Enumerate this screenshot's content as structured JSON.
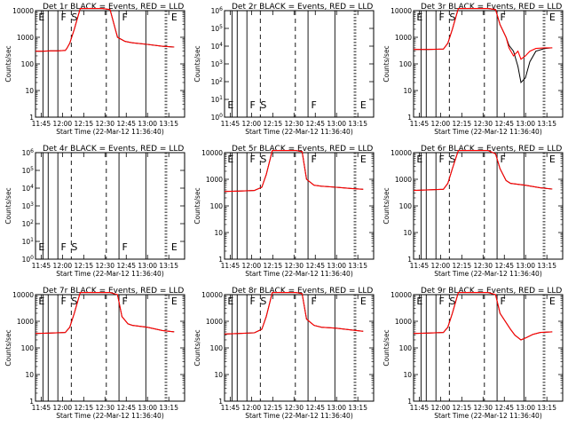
{
  "chart_data": [
    {
      "type": "line",
      "title": "Det 1r BLACK = Events, RED = LLD",
      "xlabel": "Start Time (22-Mar-12 11:36:40)",
      "ylabel": "Counts/sec",
      "yscale": "log",
      "ylim": [
        1,
        10000
      ],
      "xlim": [
        0,
        100
      ],
      "xticks": [
        "11:45",
        "12:00",
        "12:15",
        "12:30",
        "12:45",
        "13:00",
        "13:15"
      ],
      "ytick_labels": [
        "1",
        "10",
        "100",
        "1000",
        "10000"
      ],
      "markers": [
        "E",
        "F",
        "S",
        "F",
        "E"
      ],
      "series": [
        {
          "name": "Events",
          "color": "#000000",
          "x": [
            0,
            5,
            10,
            15,
            20,
            21,
            23,
            26,
            30,
            35,
            40,
            45,
            50,
            55,
            60,
            63,
            65,
            75,
            85,
            93
          ],
          "y": [
            300,
            300,
            310,
            310,
            320,
            380,
            600,
            2000,
            12000,
            12000,
            12000,
            12000,
            11000,
            1000,
            700,
            650,
            620,
            540,
            460,
            430
          ]
        },
        {
          "name": "LLD",
          "color": "#ff0000",
          "x": [
            0,
            5,
            10,
            15,
            20,
            21,
            23,
            26,
            30,
            35,
            40,
            45,
            50,
            55,
            60,
            63,
            65,
            75,
            85,
            93
          ],
          "y": [
            300,
            300,
            310,
            310,
            320,
            380,
            600,
            2000,
            12000,
            12000,
            12000,
            12000,
            11000,
            1000,
            700,
            650,
            620,
            540,
            460,
            430
          ]
        }
      ]
    },
    {
      "type": "line",
      "title": "Det 2r BLACK = Events, RED = LLD",
      "xlabel": "Start Time (22-Mar-12 11:36:40)",
      "ylabel": "Counts/sec",
      "yscale": "log",
      "ylim": [
        1,
        1000000
      ],
      "xlim": [
        0,
        100
      ],
      "xticks": [
        "11:45",
        "12:00",
        "12:15",
        "12:30",
        "12:45",
        "13:00",
        "13:15"
      ],
      "ytick_labels": [
        "10^0",
        "10^1",
        "10^2",
        "10^3",
        "10^4",
        "10^5",
        "10^6"
      ],
      "markers": [
        "E",
        "F",
        "S",
        "F",
        "E"
      ],
      "series": []
    },
    {
      "type": "line",
      "title": "Det 3r BLACK = Events, RED = LLD",
      "xlabel": "Start Time (22-Mar-12 11:36:40)",
      "ylabel": "Counts/sec",
      "yscale": "log",
      "ylim": [
        1,
        10000
      ],
      "xlim": [
        0,
        100
      ],
      "xticks": [
        "11:45",
        "12:00",
        "12:15",
        "12:30",
        "12:45",
        "13:00",
        "13:15"
      ],
      "ytick_labels": [
        "1",
        "10",
        "100",
        "1000",
        "10000"
      ],
      "markers": [
        "E",
        "F",
        "S",
        "F",
        "E"
      ],
      "series": [
        {
          "name": "Events",
          "color": "#000000",
          "x": [
            0,
            10,
            20,
            23,
            26,
            30,
            40,
            50,
            55,
            58,
            62,
            64,
            67,
            70,
            72,
            75,
            78,
            82,
            88,
            93
          ],
          "y": [
            350,
            350,
            360,
            600,
            2000,
            12000,
            12000,
            12000,
            11000,
            3000,
            1000,
            500,
            300,
            80,
            20,
            30,
            120,
            300,
            380,
            400
          ]
        },
        {
          "name": "LLD",
          "color": "#ff0000",
          "x": [
            0,
            10,
            20,
            23,
            26,
            30,
            40,
            50,
            55,
            58,
            62,
            64,
            67,
            70,
            72,
            75,
            78,
            82,
            88,
            93
          ],
          "y": [
            350,
            350,
            360,
            600,
            2000,
            12000,
            12000,
            12000,
            11000,
            3000,
            1000,
            400,
            200,
            300,
            150,
            200,
            300,
            380,
            400,
            400
          ]
        }
      ]
    },
    {
      "type": "line",
      "title": "Det 4r BLACK = Events, RED = LLD",
      "xlabel": "Start Time (22-Mar-12 11:36:40)",
      "ylabel": "Counts/sec",
      "yscale": "log",
      "ylim": [
        1,
        1000000
      ],
      "xlim": [
        0,
        100
      ],
      "xticks": [
        "11:45",
        "12:00",
        "12:15",
        "12:30",
        "12:45",
        "13:00",
        "13:15"
      ],
      "ytick_labels": [
        "10^0",
        "10^1",
        "10^2",
        "10^3",
        "10^4",
        "10^5",
        "10^6"
      ],
      "markers": [
        "E",
        "F",
        "S",
        "F",
        "E"
      ],
      "series": []
    },
    {
      "type": "line",
      "title": "Det 5r BLACK = Events, RED = LLD",
      "xlabel": "Start Time (22-Mar-12 11:36:40)",
      "ylabel": "Counts/sec",
      "yscale": "log",
      "ylim": [
        1,
        10000
      ],
      "xlim": [
        0,
        100
      ],
      "xticks": [
        "11:45",
        "12:00",
        "12:15",
        "12:30",
        "12:45",
        "13:00",
        "13:15"
      ],
      "ytick_labels": [
        "1",
        "10",
        "100",
        "1000",
        "10000"
      ],
      "markers": [
        "E",
        "F",
        "S",
        "F",
        "E"
      ],
      "series": [
        {
          "name": "Events",
          "color": "#000000",
          "x": [
            0,
            10,
            20,
            25,
            28,
            32,
            40,
            48,
            52,
            55,
            60,
            65,
            75,
            85,
            93
          ],
          "y": [
            350,
            360,
            380,
            500,
            1500,
            12000,
            12000,
            12000,
            11000,
            1000,
            600,
            550,
            500,
            450,
            420
          ]
        },
        {
          "name": "LLD",
          "color": "#ff0000",
          "x": [
            0,
            10,
            20,
            25,
            28,
            32,
            40,
            48,
            52,
            55,
            60,
            65,
            75,
            85,
            93
          ],
          "y": [
            350,
            360,
            380,
            500,
            1500,
            12000,
            12000,
            12000,
            11000,
            1000,
            600,
            550,
            500,
            450,
            420
          ]
        }
      ]
    },
    {
      "type": "line",
      "title": "Det 6r BLACK = Events, RED = LLD",
      "xlabel": "Start Time (22-Mar-12 11:36:40)",
      "ylabel": "Counts/sec",
      "yscale": "log",
      "ylim": [
        1,
        10000
      ],
      "xlim": [
        0,
        100
      ],
      "xticks": [
        "11:45",
        "12:00",
        "12:15",
        "12:30",
        "12:45",
        "13:00",
        "13:15"
      ],
      "ytick_labels": [
        "1",
        "10",
        "100",
        "1000",
        "10000"
      ],
      "markers": [
        "E",
        "F",
        "S",
        "F",
        "E"
      ],
      "series": [
        {
          "name": "Events",
          "color": "#000000",
          "x": [
            0,
            10,
            20,
            23,
            26,
            30,
            40,
            50,
            55,
            58,
            62,
            65,
            75,
            85,
            93
          ],
          "y": [
            380,
            400,
            420,
            700,
            2500,
            12000,
            12000,
            12000,
            9000,
            2500,
            900,
            700,
            600,
            480,
            430
          ]
        },
        {
          "name": "LLD",
          "color": "#ff0000",
          "x": [
            0,
            10,
            20,
            23,
            26,
            30,
            40,
            50,
            55,
            58,
            62,
            65,
            75,
            85,
            93
          ],
          "y": [
            380,
            400,
            420,
            700,
            2500,
            12000,
            12000,
            12000,
            9000,
            2500,
            900,
            700,
            600,
            480,
            430
          ]
        }
      ]
    },
    {
      "type": "line",
      "title": "Det 7r BLACK = Events, RED = LLD",
      "xlabel": "Start Time (22-Mar-12 11:36:40)",
      "ylabel": "Counts/sec",
      "yscale": "log",
      "ylim": [
        1,
        10000
      ],
      "xlim": [
        0,
        100
      ],
      "xticks": [
        "11:45",
        "12:00",
        "12:15",
        "12:30",
        "12:45",
        "13:00",
        "13:15"
      ],
      "ytick_labels": [
        "1",
        "10",
        "100",
        "1000",
        "10000"
      ],
      "markers": [
        "E",
        "F",
        "S",
        "F",
        "E"
      ],
      "series": [
        {
          "name": "Events",
          "color": "#000000",
          "x": [
            0,
            10,
            20,
            23,
            26,
            30,
            40,
            50,
            55,
            58,
            62,
            65,
            75,
            85,
            93
          ],
          "y": [
            350,
            360,
            380,
            600,
            2000,
            12000,
            12000,
            12000,
            10000,
            1500,
            800,
            700,
            600,
            450,
            400
          ]
        },
        {
          "name": "LLD",
          "color": "#ff0000",
          "x": [
            0,
            10,
            20,
            23,
            26,
            30,
            40,
            50,
            55,
            58,
            62,
            65,
            75,
            85,
            93
          ],
          "y": [
            350,
            360,
            380,
            600,
            2000,
            12000,
            12000,
            12000,
            10000,
            1500,
            800,
            700,
            600,
            450,
            400
          ]
        }
      ]
    },
    {
      "type": "line",
      "title": "Det 8r BLACK = Events, RED = LLD",
      "xlabel": "Start Time (22-Mar-12 11:36:40)",
      "ylabel": "Counts/sec",
      "yscale": "log",
      "ylim": [
        1,
        10000
      ],
      "xlim": [
        0,
        100
      ],
      "xticks": [
        "11:45",
        "12:00",
        "12:15",
        "12:30",
        "12:45",
        "13:00",
        "13:15"
      ],
      "ytick_labels": [
        "1",
        "10",
        "100",
        "1000",
        "10000"
      ],
      "markers": [
        "E",
        "F",
        "S",
        "F",
        "E"
      ],
      "series": [
        {
          "name": "Events",
          "color": "#000000",
          "x": [
            0,
            10,
            20,
            25,
            28,
            32,
            40,
            48,
            52,
            55,
            60,
            65,
            75,
            85,
            93
          ],
          "y": [
            330,
            350,
            370,
            500,
            1500,
            12000,
            12000,
            12000,
            11000,
            1200,
            700,
            600,
            550,
            470,
            420
          ]
        },
        {
          "name": "LLD",
          "color": "#ff0000",
          "x": [
            0,
            10,
            20,
            25,
            28,
            32,
            40,
            48,
            52,
            55,
            60,
            65,
            75,
            85,
            93
          ],
          "y": [
            330,
            350,
            370,
            500,
            1500,
            12000,
            12000,
            12000,
            11000,
            1200,
            700,
            600,
            550,
            470,
            420
          ]
        }
      ]
    },
    {
      "type": "line",
      "title": "Det 9r BLACK = Events, RED = LLD",
      "xlabel": "Start Time (22-Mar-12 11:36:40)",
      "ylabel": "Counts/sec",
      "yscale": "log",
      "ylim": [
        1,
        10000
      ],
      "xlim": [
        0,
        100
      ],
      "xticks": [
        "11:45",
        "12:00",
        "12:15",
        "12:30",
        "12:45",
        "13:00",
        "13:15"
      ],
      "ytick_labels": [
        "1",
        "10",
        "100",
        "1000",
        "10000"
      ],
      "markers": [
        "E",
        "F",
        "S",
        "F",
        "E"
      ],
      "series": [
        {
          "name": "Events",
          "color": "#000000",
          "x": [
            0,
            10,
            20,
            23,
            26,
            30,
            40,
            50,
            55,
            58,
            62,
            65,
            68,
            72,
            76,
            80,
            85,
            93
          ],
          "y": [
            350,
            360,
            380,
            600,
            2000,
            12000,
            12000,
            12000,
            10000,
            2000,
            900,
            500,
            300,
            200,
            250,
            320,
            380,
            400
          ]
        },
        {
          "name": "LLD",
          "color": "#ff0000",
          "x": [
            0,
            10,
            20,
            23,
            26,
            30,
            40,
            50,
            55,
            58,
            62,
            65,
            68,
            72,
            76,
            80,
            85,
            93
          ],
          "y": [
            350,
            360,
            380,
            600,
            2000,
            12000,
            12000,
            12000,
            10000,
            2000,
            900,
            500,
            300,
            200,
            250,
            320,
            380,
            400
          ]
        }
      ]
    }
  ]
}
